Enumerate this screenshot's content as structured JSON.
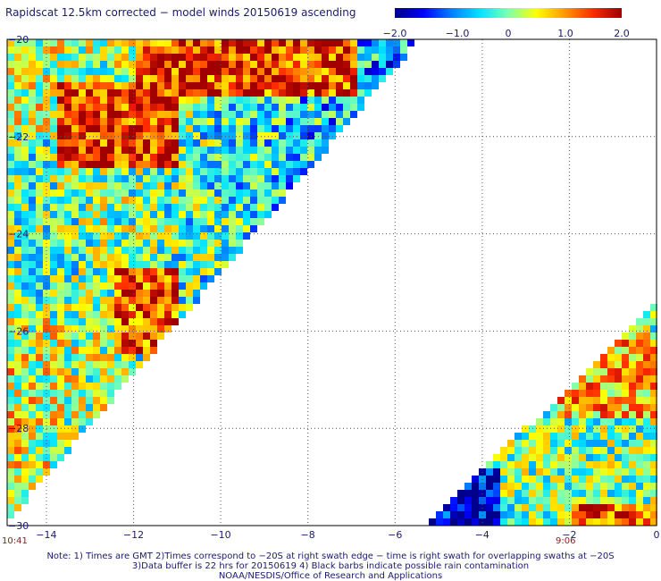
{
  "title": "Rapidscat 12.5km corrected − model winds 20150619 ascending",
  "colorbar": {
    "ticks": [
      "−2.0",
      "−1.0",
      "0",
      "1.0",
      "2.0"
    ],
    "tick_values": [
      -2.0,
      -1.0,
      0.0,
      1.0,
      2.0
    ],
    "range": [
      -2.0,
      2.0
    ],
    "colors": [
      "#00008b",
      "#0000ff",
      "#0080ff",
      "#00e5ff",
      "#7fffb0",
      "#ffff00",
      "#ff9900",
      "#ff2a00",
      "#a00000"
    ]
  },
  "map": {
    "lon_ticks": [
      "−14",
      "−12",
      "−10",
      "−8",
      "−6",
      "−4",
      "−2",
      "0"
    ],
    "lon_values": [
      -14,
      -12,
      -10,
      -8,
      -6,
      -4,
      -2,
      0
    ],
    "lat_ticks": [
      "−20",
      "−22",
      "−24",
      "−26",
      "−28",
      "−30"
    ],
    "lat_values": [
      -20,
      -22,
      -24,
      -26,
      -28,
      -30
    ],
    "lon_range": [
      -14.9,
      0
    ],
    "lat_range": [
      -30,
      -20
    ],
    "pass_time_left": "10:41",
    "pass_time_right": "9:06"
  },
  "notes": {
    "line1": "Note: 1) Times are GMT 2)Times correspond to −20S at right swath edge − time is right swath for overlapping swaths at −20S",
    "line2": "3)Data buffer is 22 hrs for 20150619 4) Black barbs indicate possible rain contamination",
    "line3": "NOAA/NESDIS/Office of Research and Applications"
  }
}
